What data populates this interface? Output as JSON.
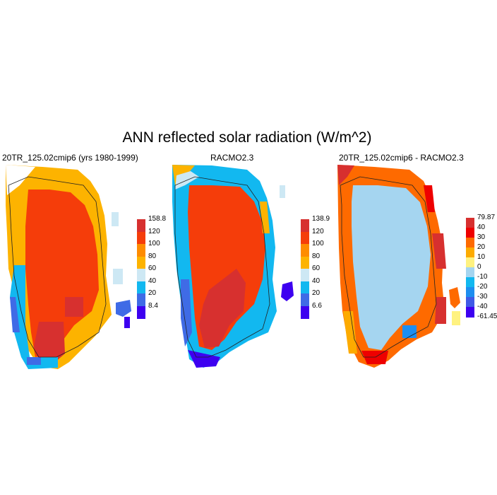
{
  "figure": {
    "title": "ANN reflected solar radiation (W/m^2)"
  },
  "panels": [
    {
      "title": "20TR_125.02cmip6 (yrs 1980-1999)",
      "colorbar": {
        "labels": [
          "158.8",
          "120",
          "100",
          "80",
          "60",
          "40",
          "20",
          "8.4"
        ],
        "colors": [
          "#d7302f",
          "#f53d0a",
          "#fe8c00",
          "#fdb300",
          "#cde8f4",
          "#12b8f0",
          "#3f6be6",
          "#3d00f0"
        ]
      }
    },
    {
      "title": "RACMO2.3",
      "colorbar": {
        "labels": [
          "138.9",
          "120",
          "100",
          "80",
          "60",
          "40",
          "20",
          "6.6"
        ],
        "colors": [
          "#d7302f",
          "#f53d0a",
          "#fe8c00",
          "#fdb300",
          "#cde8f4",
          "#12b8f0",
          "#3f6be6",
          "#3d00f0"
        ]
      }
    },
    {
      "title": "20TR_125.02cmip6 - RACMO2.3",
      "colorbar": {
        "labels": [
          "79.87",
          "40",
          "30",
          "20",
          "10",
          "0",
          "-10",
          "-20",
          "-30",
          "-40",
          "-61.45"
        ],
        "colors": [
          "#d7302f",
          "#ee0000",
          "#fe6a00",
          "#fdab00",
          "#fff280",
          "#a5d5f0",
          "#12b8f0",
          "#1d8ef0",
          "#3f5ae6",
          "#3d00f0"
        ]
      }
    }
  ]
}
